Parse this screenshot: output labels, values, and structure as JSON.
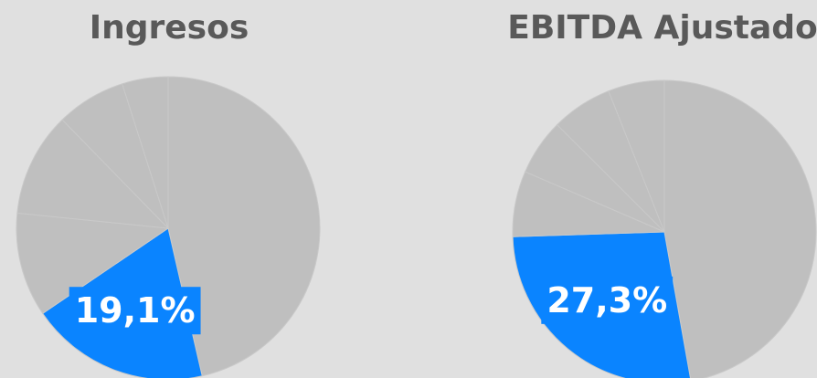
{
  "chart_data": [
    {
      "type": "pie",
      "title": "Ingresos",
      "values": [
        46.4,
        19.1,
        11.1,
        11.1,
        7.4,
        4.9
      ],
      "value_labels": [
        null,
        "19,1%",
        null,
        null,
        null,
        null
      ],
      "colors": [
        "#bfbfbf",
        "#0a84ff",
        "#bfbfbf",
        "#bfbfbf",
        "#bfbfbf",
        "#bfbfbf"
      ]
    },
    {
      "type": "pie",
      "title": "EBITDA Ajustado",
      "values": [
        47.2,
        27.3,
        7.0,
        6.0,
        6.5,
        6.0
      ],
      "value_labels": [
        null,
        "27,3%",
        null,
        null,
        null,
        null
      ],
      "colors": [
        "#bfbfbf",
        "#0a84ff",
        "#bfbfbf",
        "#bfbfbf",
        "#bfbfbf",
        "#bfbfbf"
      ]
    }
  ]
}
